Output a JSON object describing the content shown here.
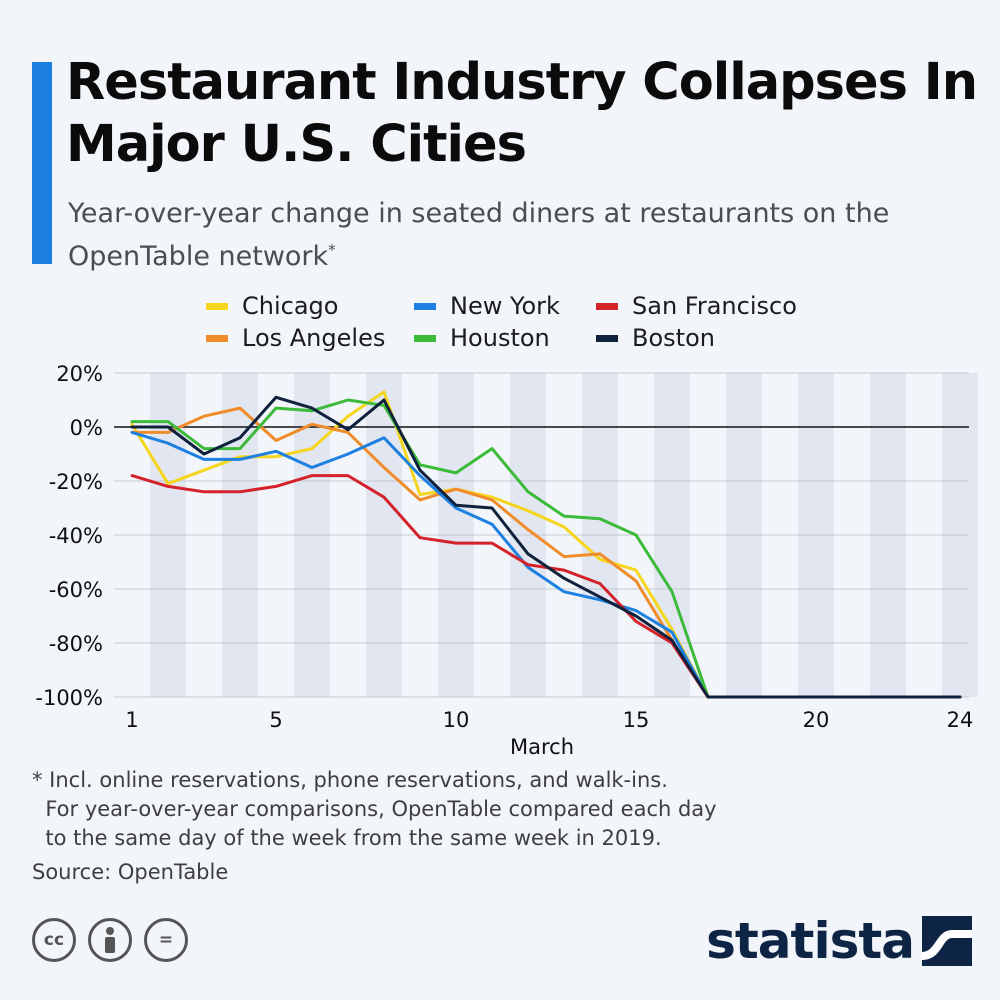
{
  "header": {
    "title": "Restaurant Industry Collapses In Major U.S. Cities",
    "subtitle": "Year-over-year change in seated diners at restaurants on the OpenTable network",
    "subtitle_mark": "*",
    "accent_color": "#1b7fe0"
  },
  "legend": [
    {
      "name": "Chicago",
      "color": "#f5d51e"
    },
    {
      "name": "New York",
      "color": "#1e80e0"
    },
    {
      "name": "San Francisco",
      "color": "#d4222a"
    },
    {
      "name": "Los Angeles",
      "color": "#f08c2a"
    },
    {
      "name": "Houston",
      "color": "#3cba3a"
    },
    {
      "name": "Boston",
      "color": "#10213d"
    }
  ],
  "chart_data": {
    "type": "line",
    "title": "",
    "xlabel": "March",
    "ylabel": "",
    "x": [
      1,
      2,
      3,
      4,
      5,
      6,
      7,
      8,
      9,
      10,
      11,
      12,
      13,
      14,
      15,
      16,
      17,
      18,
      19,
      20,
      21,
      22,
      23,
      24
    ],
    "xticks": [
      1,
      5,
      10,
      15,
      20,
      24
    ],
    "ylim": [
      -100,
      20
    ],
    "yticks": [
      20,
      0,
      -20,
      -40,
      -60,
      -80,
      -100
    ],
    "ytick_labels": [
      "20%",
      "0%",
      "-20%",
      "-40%",
      "-60%",
      "-80%",
      "-100%"
    ],
    "grid": "horizontal",
    "legend_position": "top",
    "series": [
      {
        "name": "Chicago",
        "color": "#f5d51e",
        "values": [
          1,
          -21,
          -16,
          -11,
          -11,
          -8,
          4,
          13,
          -25,
          -23,
          -26,
          -31,
          -37,
          -49,
          -53,
          -75,
          -100,
          -100,
          -100,
          -100,
          -100,
          -100,
          -100,
          -100
        ]
      },
      {
        "name": "Los Angeles",
        "color": "#f08c2a",
        "values": [
          -2,
          -2,
          4,
          7,
          -5,
          1,
          -2,
          -15,
          -27,
          -23,
          -27,
          -38,
          -48,
          -47,
          -57,
          -79,
          -100,
          -100,
          -100,
          -100,
          -100,
          -100,
          -100,
          -100
        ]
      },
      {
        "name": "New York",
        "color": "#1e80e0",
        "values": [
          -2,
          -6,
          -12,
          -12,
          -9,
          -15,
          -10,
          -4,
          -18,
          -30,
          -36,
          -52,
          -61,
          -64,
          -68,
          -76,
          -100,
          -100,
          -100,
          -100,
          -100,
          -100,
          -100,
          -100
        ]
      },
      {
        "name": "Houston",
        "color": "#3cba3a",
        "values": [
          2,
          2,
          -8,
          -8,
          7,
          6,
          10,
          8,
          -14,
          -17,
          -8,
          -24,
          -33,
          -34,
          -40,
          -61,
          -100,
          -100,
          -100,
          -100,
          -100,
          -100,
          -100,
          -100
        ]
      },
      {
        "name": "San Francisco",
        "color": "#d4222a",
        "values": [
          -18,
          -22,
          -24,
          -24,
          -22,
          -18,
          -18,
          -26,
          -41,
          -43,
          -43,
          -51,
          -53,
          -58,
          -72,
          -80,
          -100,
          -100,
          -100,
          -100,
          -100,
          -100,
          -100,
          -100
        ]
      },
      {
        "name": "Boston",
        "color": "#10213d",
        "values": [
          0,
          0,
          -10,
          -4,
          11,
          7,
          -1,
          10,
          -16,
          -29,
          -30,
          -47,
          -56,
          -63,
          -70,
          -79,
          -100,
          -100,
          -100,
          -100,
          -100,
          -100,
          -100,
          -100
        ]
      }
    ]
  },
  "footer": {
    "footnote_lines": [
      "* Incl. online reservations, phone reservations, and walk-ins.",
      "  For year-over-year comparisons, OpenTable compared each day",
      "  to the same day of the week from the same week in 2019."
    ],
    "source": "Source: OpenTable",
    "license_icons": [
      "cc-icon",
      "attribution-icon",
      "no-derivatives-icon"
    ],
    "license_labels": [
      "cc",
      "",
      "="
    ],
    "brand": "statista",
    "brand_color": "#0d2445"
  }
}
